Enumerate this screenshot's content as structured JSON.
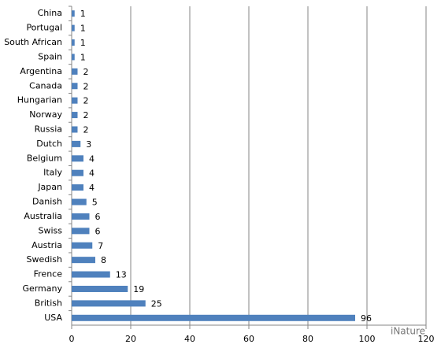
{
  "chart_data": {
    "type": "bar",
    "orientation": "horizontal",
    "categories": [
      "China",
      "Portugal",
      "South African",
      "Spain",
      "Argentina",
      "Canada",
      "Hungarian",
      "Norway",
      "Russia",
      "Dutch",
      "Belgium",
      "Italy",
      "Japan",
      "Danish",
      "Australia",
      "Swiss",
      "Austria",
      "Swedish",
      "Frence",
      "Germany",
      "British",
      "USA"
    ],
    "values": [
      1,
      1,
      1,
      1,
      2,
      2,
      2,
      2,
      2,
      3,
      4,
      4,
      4,
      5,
      6,
      6,
      7,
      8,
      13,
      19,
      25,
      96
    ],
    "color": "#4f81bd",
    "xlim": [
      0,
      120
    ],
    "xticks": [
      0,
      20,
      40,
      60,
      80,
      100,
      120
    ],
    "grid": true,
    "watermark": "iNature"
  }
}
